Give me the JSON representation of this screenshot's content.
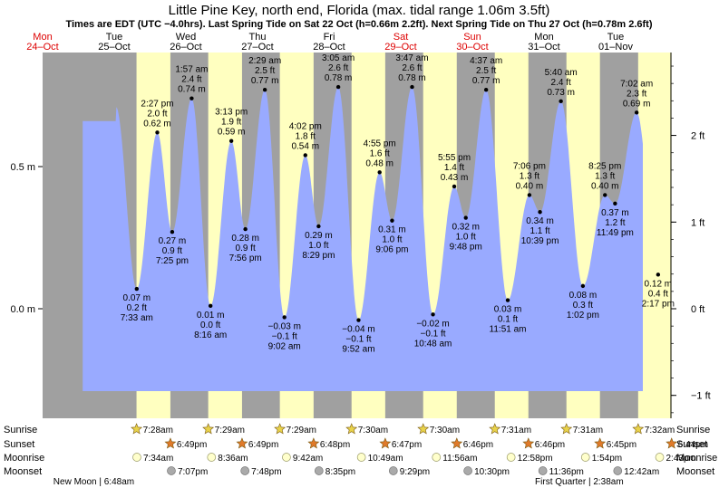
{
  "chart_data": {
    "type": "area",
    "title": "Little Pine Key, north end, Florida (max. tidal range 1.06m 3.5ft)",
    "subtitle": "Times are EDT (UTC −4.0hrs). Last Spring Tide on Sat 22 Oct (h=0.66m 2.2ft). Next Spring Tide on Thu 27 Oct (h=0.78m 2.6ft)",
    "x_unit": "days since Mon 24-Oct 00:00",
    "xlim": [
      0,
      8.9
    ],
    "ylim": [
      -0.31,
      0.9
    ],
    "colors": {
      "night": "#a0a0a0",
      "day": "#ffffc0",
      "tide": "#99aaff",
      "weekend_label": "#dd0000",
      "sun_star": "#e8d24a",
      "sunset_star": "#e07a2a",
      "moonrise_dot": "#ffffcc",
      "moonset_dot": "#aaaaaa"
    },
    "days": [
      {
        "dow": "Mon",
        "date": "24–Oct",
        "weekend": true
      },
      {
        "dow": "Tue",
        "date": "25–Oct",
        "weekend": false
      },
      {
        "dow": "Wed",
        "date": "26–Oct",
        "weekend": false
      },
      {
        "dow": "Thu",
        "date": "27–Oct",
        "weekend": false
      },
      {
        "dow": "Fri",
        "date": "28–Oct",
        "weekend": false
      },
      {
        "dow": "Sat",
        "date": "29–Oct",
        "weekend": true
      },
      {
        "dow": "Sun",
        "date": "30–Oct",
        "weekend": true
      },
      {
        "dow": "Mon",
        "date": "31–Oct",
        "weekend": false
      },
      {
        "dow": "Tue",
        "date": "01–Nov",
        "weekend": false
      }
    ],
    "y_ticks_left": [
      {
        "v": 0.5,
        "label": "0.5 m"
      },
      {
        "v": 0.0,
        "label": "0.0 m"
      }
    ],
    "y_ticks_right": [
      {
        "v": 0.6096,
        "label": "2 ft"
      },
      {
        "v": 0.3048,
        "label": "1 ft"
      },
      {
        "v": 0.0,
        "label": "0 ft"
      },
      {
        "v": -0.3048,
        "label": "−1 ft"
      }
    ],
    "tides": [
      {
        "t": 1.314,
        "h": 0.07,
        "ft": "0.2 ft",
        "m": "0.07 m",
        "time": "7:33 am",
        "type": "low"
      },
      {
        "t": 1.601,
        "h": 0.62,
        "ft": "2.0 ft",
        "m": "0.62 m",
        "time": "2:27 pm",
        "type": "high"
      },
      {
        "t": 1.809,
        "h": 0.27,
        "ft": "0.9 ft",
        "m": "0.27 m",
        "time": "7:25 pm",
        "type": "low"
      },
      {
        "t": 2.081,
        "h": 0.74,
        "ft": "2.4 ft",
        "m": "0.74 m",
        "time": "1:57 am",
        "type": "high"
      },
      {
        "t": 2.344,
        "h": 0.01,
        "ft": "0.0 ft",
        "m": "0.01 m",
        "time": "8:16 am",
        "type": "low"
      },
      {
        "t": 2.635,
        "h": 0.59,
        "ft": "1.9 ft",
        "m": "0.59 m",
        "time": "3:13 pm",
        "type": "high"
      },
      {
        "t": 2.831,
        "h": 0.28,
        "ft": "0.9 ft",
        "m": "0.28 m",
        "time": "7:56 pm",
        "type": "low"
      },
      {
        "t": 3.103,
        "h": 0.77,
        "ft": "2.5 ft",
        "m": "0.77 m",
        "time": "2:29 am",
        "type": "high"
      },
      {
        "t": 3.376,
        "h": -0.03,
        "ft": "−0.1 ft",
        "m": "−0.03 m",
        "time": "9:02 am",
        "type": "low"
      },
      {
        "t": 3.668,
        "h": 0.54,
        "ft": "1.8 ft",
        "m": "0.54 m",
        "time": "4:02 pm",
        "type": "high"
      },
      {
        "t": 3.853,
        "h": 0.29,
        "ft": "1.0 ft",
        "m": "0.29 m",
        "time": "8:29 pm",
        "type": "low"
      },
      {
        "t": 4.128,
        "h": 0.78,
        "ft": "2.6 ft",
        "m": "0.78 m",
        "time": "3:05 am",
        "type": "high"
      },
      {
        "t": 4.411,
        "h": -0.04,
        "ft": "−0.1 ft",
        "m": "−0.04 m",
        "time": "9:52 am",
        "type": "low"
      },
      {
        "t": 4.705,
        "h": 0.48,
        "ft": "1.6 ft",
        "m": "0.48 m",
        "time": "4:55 pm",
        "type": "high"
      },
      {
        "t": 4.879,
        "h": 0.31,
        "ft": "1.0 ft",
        "m": "0.31 m",
        "time": "9:06 pm",
        "type": "low"
      },
      {
        "t": 5.158,
        "h": 0.78,
        "ft": "2.6 ft",
        "m": "0.78 m",
        "time": "3:47 am",
        "type": "high"
      },
      {
        "t": 5.45,
        "h": -0.02,
        "ft": "−0.1 ft",
        "m": "−0.02 m",
        "time": "10:48 am",
        "type": "low"
      },
      {
        "t": 5.747,
        "h": 0.43,
        "ft": "1.4 ft",
        "m": "0.43 m",
        "time": "5:55 pm",
        "type": "high"
      },
      {
        "t": 5.908,
        "h": 0.32,
        "ft": "1.0 ft",
        "m": "0.32 m",
        "time": "9:48 pm",
        "type": "low"
      },
      {
        "t": 6.192,
        "h": 0.77,
        "ft": "2.5 ft",
        "m": "0.77 m",
        "time": "4:37 am",
        "type": "high"
      },
      {
        "t": 6.494,
        "h": 0.03,
        "ft": "0.1 ft",
        "m": "0.03 m",
        "time": "11:51 am",
        "type": "low"
      },
      {
        "t": 6.796,
        "h": 0.4,
        "ft": "1.3 ft",
        "m": "0.40 m",
        "time": "7:06 pm",
        "type": "high"
      },
      {
        "t": 6.944,
        "h": 0.34,
        "ft": "1.1 ft",
        "m": "0.34 m",
        "time": "10:39 pm",
        "type": "low"
      },
      {
        "t": 7.236,
        "h": 0.73,
        "ft": "2.4 ft",
        "m": "0.73 m",
        "time": "5:40 am",
        "type": "high"
      },
      {
        "t": 7.543,
        "h": 0.08,
        "ft": "0.3 ft",
        "m": "0.08 m",
        "time": "1:02 pm",
        "type": "low"
      },
      {
        "t": 7.851,
        "h": 0.4,
        "ft": "1.3 ft",
        "m": "0.40 m",
        "time": "8:25 pm",
        "type": "high"
      },
      {
        "t": 7.992,
        "h": 0.37,
        "ft": "1.2 ft",
        "m": "0.37 m",
        "time": "11:49 pm",
        "type": "low"
      },
      {
        "t": 8.293,
        "h": 0.69,
        "ft": "2.3 ft",
        "m": "0.69 m",
        "time": "7:02 am",
        "type": "high"
      },
      {
        "t": 8.593,
        "h": 0.12,
        "ft": "0.4 ft",
        "m": "0.12 m",
        "time": "2:17 pm",
        "type": "low"
      }
    ],
    "sun_days": [
      {
        "sunrise_t": 1.311,
        "sunrise": "7:28am",
        "sunset_t": 1.784,
        "sunset": "6:49pm"
      },
      {
        "sunrise_t": 2.312,
        "sunrise": "7:29am",
        "sunset_t": 2.784,
        "sunset": "6:49pm"
      },
      {
        "sunrise_t": 3.312,
        "sunrise": "7:29am",
        "sunset_t": 3.783,
        "sunset": "6:48pm"
      },
      {
        "sunrise_t": 4.313,
        "sunrise": "7:30am",
        "sunset_t": 4.783,
        "sunset": "6:47pm"
      },
      {
        "sunrise_t": 5.313,
        "sunrise": "7:30am",
        "sunset_t": 5.782,
        "sunset": "6:46pm"
      },
      {
        "sunrise_t": 6.313,
        "sunrise": "7:31am",
        "sunset_t": 6.782,
        "sunset": "6:46pm"
      },
      {
        "sunrise_t": 7.313,
        "sunrise": "7:31am",
        "sunset_t": 7.781,
        "sunset": "6:45pm"
      },
      {
        "sunrise_t": 8.314,
        "sunrise": "7:32am",
        "sunset_t": 8.781,
        "sunset": "6:44pm"
      }
    ],
    "moonrises": [
      {
        "t": 1.316,
        "label": "7:34am"
      },
      {
        "t": 2.358,
        "label": "8:36am"
      },
      {
        "t": 3.404,
        "label": "9:42am"
      },
      {
        "t": 4.451,
        "label": "10:49am"
      },
      {
        "t": 5.497,
        "label": "11:56am"
      },
      {
        "t": 6.54,
        "label": "12:58pm"
      },
      {
        "t": 7.579,
        "label": "1:54pm"
      },
      {
        "t": 8.614,
        "label": "2:43pm"
      }
    ],
    "moonsets": [
      {
        "t": 1.797,
        "label": "7:07pm"
      },
      {
        "t": 2.825,
        "label": "7:48pm"
      },
      {
        "t": 3.858,
        "label": "8:35pm"
      },
      {
        "t": 4.896,
        "label": "9:29pm"
      },
      {
        "t": 5.938,
        "label": "10:30pm"
      },
      {
        "t": 6.983,
        "label": "11:36pm"
      },
      {
        "t": 8.029,
        "label": "12:42am"
      }
    ],
    "row_labels": [
      "Sunrise",
      "Sunset",
      "Moonrise",
      "Moonset"
    ],
    "moon_phases": [
      {
        "t": 1.28,
        "label": "New Moon | 6:48am",
        "anchor": "end"
      },
      {
        "t": 8.11,
        "label": "First Quarter | 2:38am",
        "anchor": "end"
      }
    ]
  }
}
